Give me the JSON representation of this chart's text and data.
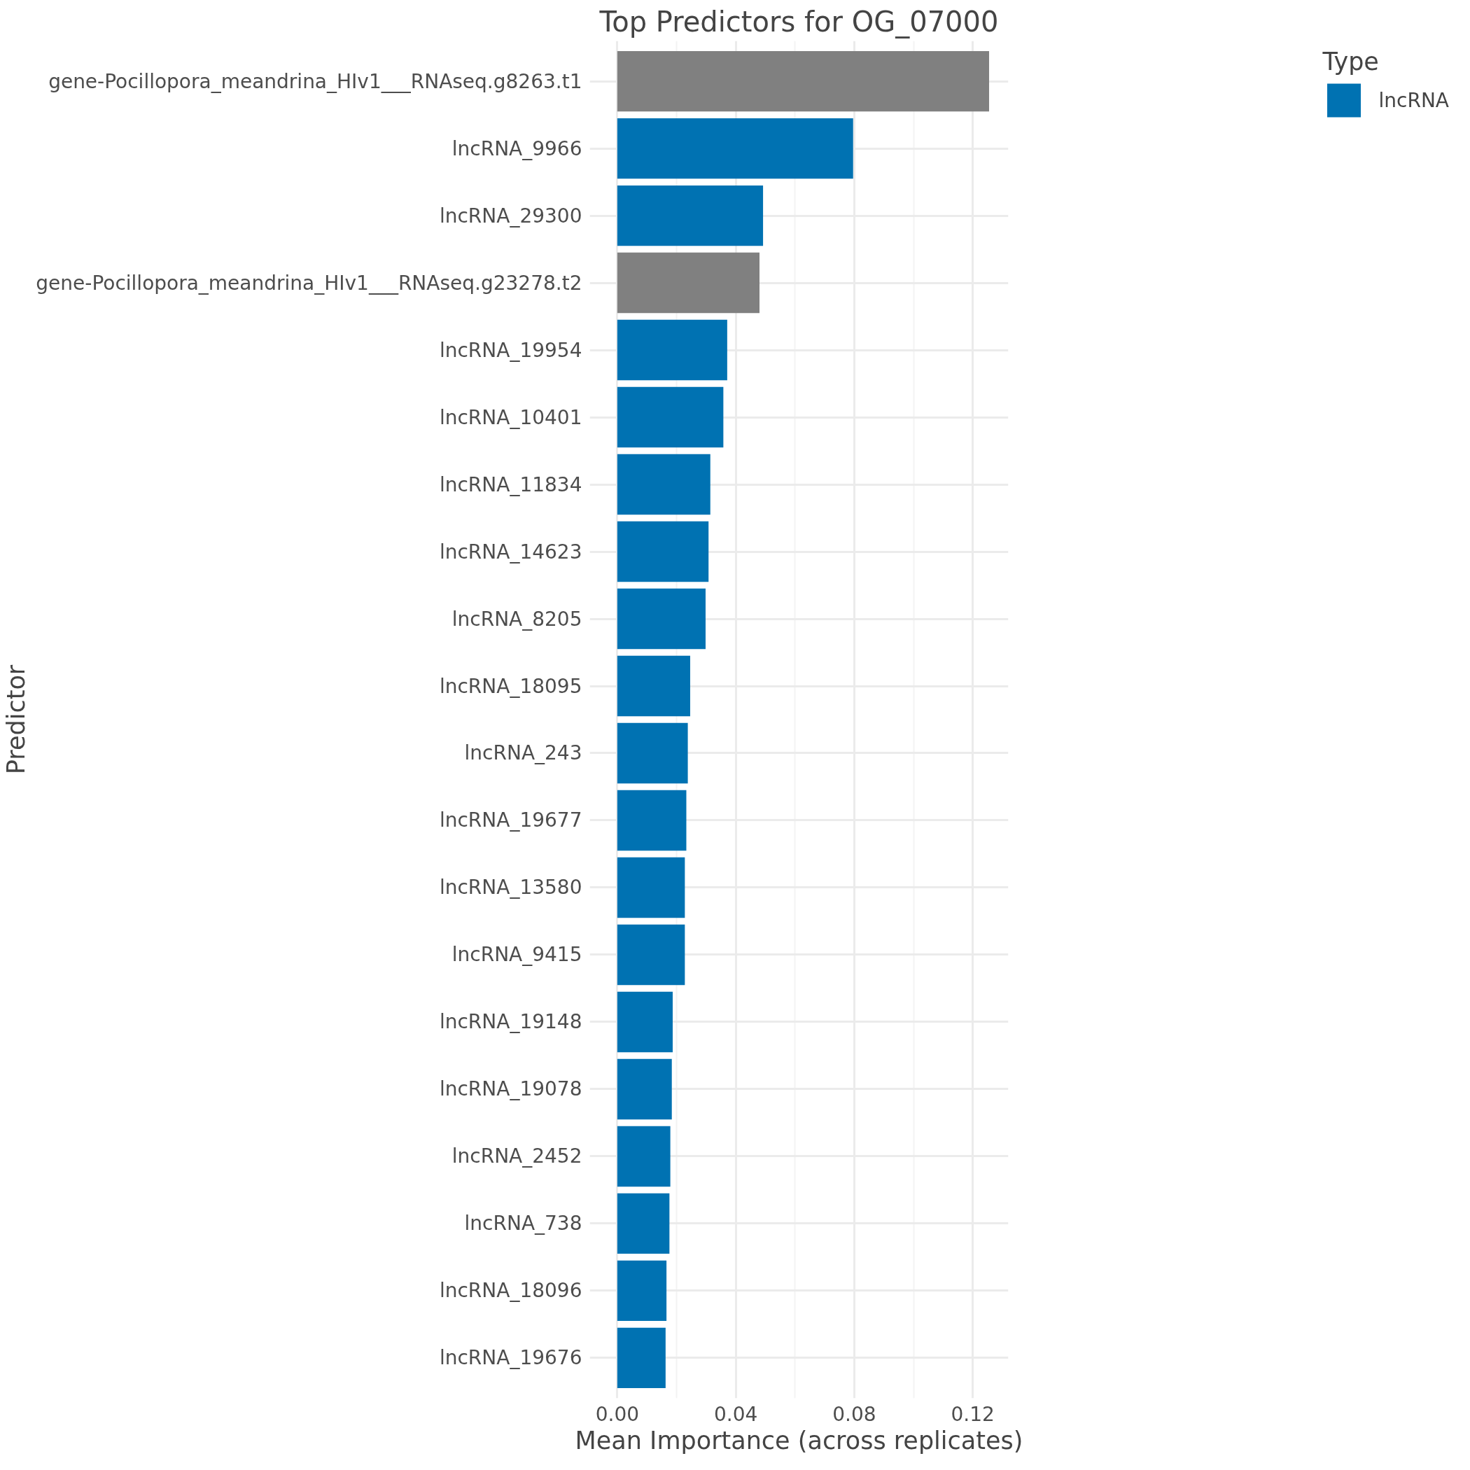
{
  "chart_data": {
    "type": "bar",
    "orientation": "horizontal",
    "title": "Top Predictors for OG_07000",
    "xlabel": "Mean Importance (across replicates)",
    "ylabel": "Predictor",
    "legend_title": "Type",
    "categories": [
      "gene-Pocillopora_meandrina_HIv1___RNAseq.g8263.t1",
      "lncRNA_9966",
      "lncRNA_29300",
      "gene-Pocillopora_meandrina_HIv1___RNAseq.g23278.t2",
      "lncRNA_19954",
      "lncRNA_10401",
      "lncRNA_11834",
      "lncRNA_14623",
      "lncRNA_8205",
      "lncRNA_18095",
      "lncRNA_243",
      "lncRNA_19677",
      "lncRNA_13580",
      "lncRNA_9415",
      "lncRNA_19148",
      "lncRNA_19078",
      "lncRNA_2452",
      "lncRNA_738",
      "lncRNA_18096",
      "lncRNA_19676"
    ],
    "series": [
      {
        "name": "lncRNA",
        "color": "#0072b2",
        "values": [
          null,
          0.0796,
          0.0492,
          null,
          0.0371,
          0.0358,
          0.0314,
          0.0308,
          0.0298,
          0.0246,
          0.0238,
          0.0233,
          0.0228,
          0.0228,
          0.0187,
          0.0184,
          0.0179,
          0.0176,
          0.0166,
          0.0163
        ]
      },
      {
        "color": "#808080",
        "values": [
          0.1255,
          null,
          null,
          0.048,
          null,
          null,
          null,
          null,
          null,
          null,
          null,
          null,
          null,
          null,
          null,
          null,
          null,
          null,
          null,
          null
        ]
      }
    ],
    "xlim": [
      -0.0093,
      0.132
    ],
    "xticks": [
      {
        "value": 0,
        "label": "0.00"
      },
      {
        "value": 0.04,
        "label": "0.04"
      },
      {
        "value": 0.08,
        "label": "0.08"
      },
      {
        "value": 0.12,
        "label": "0.12"
      }
    ],
    "grid": true,
    "legend": "right"
  }
}
